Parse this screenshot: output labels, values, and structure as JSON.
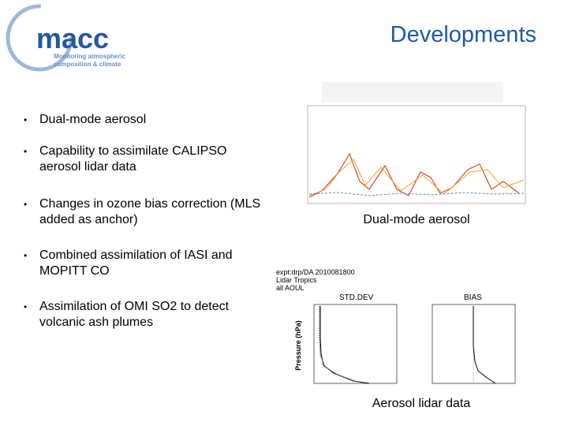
{
  "header": {
    "logo": {
      "name": "macc",
      "tagline": [
        "Monitoring atmospheric",
        "composition & climate"
      ]
    },
    "title": "Developments"
  },
  "bullets": [
    {
      "lines": [
        "Dual-mode aerosol"
      ]
    },
    {
      "lines": [
        "Capability to assimilate CALIPSO",
        "aerosol lidar data"
      ]
    },
    {
      "lines": [
        "Changes in ozone bias correction (MLS",
        "added as anchor)"
      ]
    },
    {
      "lines": [
        "Combined assimilation of IASI and",
        "MOPITT CO"
      ]
    },
    {
      "lines": [
        "Assimilation of OMI SO2 to detect",
        "volcanic ash plumes"
      ]
    }
  ],
  "figures": [
    {
      "caption": "Dual-mode aerosol"
    },
    {
      "caption": "Aerosol lidar data",
      "header": [
        "expt:drp/DA 2010081800",
        "Lidar Tropics",
        "all AOUL"
      ],
      "panels": [
        "STD.DEV",
        "BIAS"
      ],
      "y_label": "Pressure (hPa)"
    }
  ]
}
